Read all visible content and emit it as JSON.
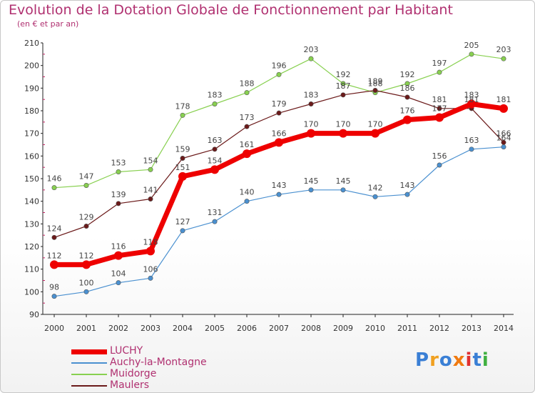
{
  "title": "Evolution de la Dotation Globale de Fonctionnement par Habitant",
  "subtitle": "(en € et par an)",
  "logo": {
    "text": "Proxiti",
    "colors": [
      "#3a7fd5",
      "#f0a020",
      "#3a7fd5",
      "#f07a10",
      "#e03030",
      "#3a7fd5",
      "#40b040"
    ]
  },
  "chart_data": {
    "type": "line",
    "title": "Evolution de la Dotation Globale de Fonctionnement par Habitant",
    "subtitle": "(en € et par an)",
    "x": [
      "2000",
      "2001",
      "2002",
      "2003",
      "2004",
      "2005",
      "2006",
      "2007",
      "2008",
      "2009",
      "2010",
      "2011",
      "2012",
      "2013",
      "2014"
    ],
    "ylim": [
      90,
      210
    ],
    "yticks": [
      90,
      100,
      110,
      120,
      130,
      140,
      150,
      160,
      170,
      180,
      190,
      200,
      210
    ],
    "grid": false,
    "legend_position": "bottom-left",
    "series": [
      {
        "name": "Muidorge",
        "color": "#88d050",
        "values": [
          146,
          147,
          153,
          154,
          178,
          183,
          188,
          196,
          203,
          192,
          188,
          192,
          197,
          205,
          203
        ]
      },
      {
        "name": "Maulers",
        "color": "#6b1a1a",
        "values": [
          124,
          129,
          139,
          141,
          159,
          163,
          173,
          179,
          183,
          187,
          189,
          186,
          181,
          181,
          166
        ]
      },
      {
        "name": "Auchy-la-Montagne",
        "color": "#4a90d0",
        "values": [
          98,
          100,
          104,
          106,
          127,
          131,
          140,
          143,
          145,
          145,
          142,
          143,
          156,
          163,
          164
        ]
      },
      {
        "name": "LUCHY",
        "color": "#ee0000",
        "values": [
          112,
          112,
          116,
          118,
          151,
          154,
          161,
          166,
          170,
          170,
          170,
          176,
          177,
          183,
          181
        ]
      }
    ],
    "legend": [
      "LUCHY",
      "Auchy-la-Montagne",
      "Muidorge",
      "Maulers"
    ]
  }
}
